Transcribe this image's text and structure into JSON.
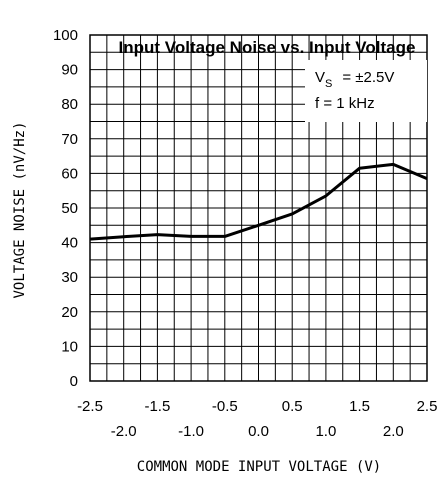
{
  "chart_data": {
    "type": "line",
    "title": "Input Voltage Noise vs. Input Voltage",
    "xlabel": "COMMON MODE INPUT VOLTAGE (V)",
    "ylabel": "VOLTAGE NOISE (nV/Hz)",
    "xlim": [
      -2.5,
      2.5
    ],
    "ylim": [
      0,
      100
    ],
    "grid": true,
    "x_ticks_upper": [
      "-2.5",
      "-1.5",
      "-0.5",
      "0.5",
      "1.5",
      "2.5"
    ],
    "x_ticks_lower": [
      "-2.0",
      "-1.0",
      "0.0",
      "1.0",
      "2.0"
    ],
    "y_ticks": [
      "0",
      "10",
      "20",
      "30",
      "40",
      "50",
      "60",
      "70",
      "80",
      "90",
      "100"
    ],
    "annotation": {
      "line1_main": "V",
      "line1_sub": "S",
      "line1_rest": "= ±2.5V",
      "line2": "f = 1 kHz"
    },
    "series": [
      {
        "x": [
          -2.5,
          -2.0,
          -1.5,
          -1.0,
          -0.5,
          0.0,
          0.5,
          1.0,
          1.5,
          2.0,
          2.5
        ],
        "y": [
          41,
          41.7,
          42.3,
          41.8,
          41.8,
          45,
          48.3,
          53.5,
          61.5,
          62.6,
          58.5
        ]
      }
    ]
  }
}
